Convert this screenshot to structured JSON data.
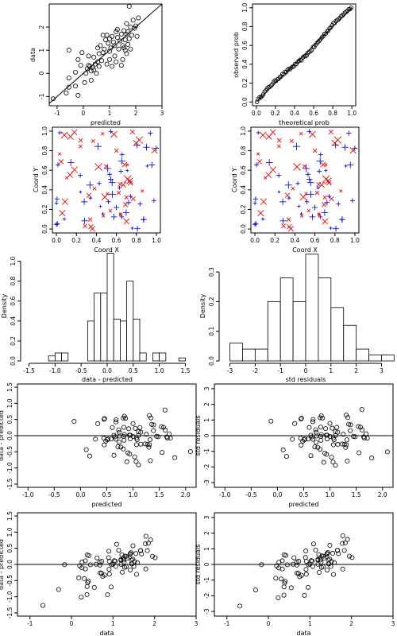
{
  "chart_data": [
    {
      "type": "scatter",
      "xlabel": "predicted",
      "ylabel": "data",
      "xlim": [
        -1.3,
        3.0
      ],
      "ylim": [
        -1.4,
        3.0
      ],
      "xticks": [
        "-1",
        "0",
        "1",
        "2",
        "3"
      ],
      "yticks": [
        "-1",
        "0",
        "1",
        "2"
      ],
      "ref_line": "y = x",
      "points": [
        [
          -1.15,
          -1.1
        ],
        [
          -0.65,
          -0.85
        ],
        [
          -0.55,
          -0.6
        ],
        [
          -0.3,
          -0.55
        ],
        [
          -0.2,
          -0.95
        ],
        [
          -0.55,
          -0.2
        ],
        [
          -0.3,
          0.05
        ],
        [
          -0.2,
          0.6
        ],
        [
          -0.55,
          1.0
        ],
        [
          -0.1,
          0.35
        ],
        [
          0.05,
          -0.4
        ],
        [
          0.1,
          0.0
        ],
        [
          0.15,
          0.2
        ],
        [
          0.2,
          0.35
        ],
        [
          0.25,
          0.3
        ],
        [
          0.3,
          0.1
        ],
        [
          0.35,
          0.25
        ],
        [
          0.4,
          0.15
        ],
        [
          0.45,
          0.4
        ],
        [
          0.5,
          0.0
        ],
        [
          0.55,
          0.5
        ],
        [
          0.6,
          0.3
        ],
        [
          0.6,
          0.85
        ],
        [
          0.65,
          1.2
        ],
        [
          0.7,
          0.55
        ],
        [
          0.75,
          0.9
        ],
        [
          0.8,
          1.05
        ],
        [
          0.85,
          1.45
        ],
        [
          0.9,
          0.4
        ],
        [
          0.95,
          1.3
        ],
        [
          1.0,
          1.5
        ],
        [
          1.0,
          0.95
        ],
        [
          1.05,
          1.1
        ],
        [
          1.1,
          1.6
        ],
        [
          1.15,
          1.35
        ],
        [
          1.2,
          1.2
        ],
        [
          1.2,
          0.75
        ],
        [
          1.25,
          1.8
        ],
        [
          1.3,
          1.55
        ],
        [
          1.35,
          1.05
        ],
        [
          1.4,
          1.4
        ],
        [
          1.45,
          1.7
        ],
        [
          1.5,
          1.2
        ],
        [
          1.55,
          1.1
        ],
        [
          1.55,
          1.85
        ],
        [
          1.6,
          1.45
        ],
        [
          1.65,
          2.15
        ],
        [
          1.65,
          1.7
        ],
        [
          1.7,
          1.25
        ],
        [
          1.7,
          1.8
        ],
        [
          1.75,
          1.5
        ],
        [
          1.8,
          2.0
        ],
        [
          1.85,
          1.65
        ],
        [
          1.9,
          2.3
        ],
        [
          1.95,
          1.95
        ],
        [
          2.0,
          2.05
        ],
        [
          2.05,
          1.6
        ],
        [
          2.1,
          2.4
        ],
        [
          1.75,
          2.9
        ],
        [
          1.5,
          0.6
        ],
        [
          1.6,
          1.0
        ],
        [
          1.1,
          0.3
        ],
        [
          0.9,
          1.65
        ],
        [
          0.75,
          1.65
        ],
        [
          1.3,
          1.9
        ],
        [
          0.4,
          0.7
        ],
        [
          -0.05,
          0.9
        ],
        [
          0.2,
          0.75
        ],
        [
          1.45,
          0.35
        ],
        [
          0.3,
          -0.3
        ],
        [
          1.8,
          1.05
        ],
        [
          1.25,
          0.5
        ],
        [
          0.55,
          1.1
        ],
        [
          1.0,
          0.6
        ],
        [
          1.65,
          0.85
        ]
      ]
    },
    {
      "type": "scatter",
      "xlabel": "theoretical prob",
      "ylabel": "observed prob",
      "xlim": [
        -0.04,
        1.04
      ],
      "ylim": [
        -0.04,
        1.04
      ],
      "xticks": [
        "0.0",
        "0.2",
        "0.4",
        "0.6",
        "0.8",
        "1.0"
      ],
      "yticks": [
        "0.0",
        "0.2",
        "0.4",
        "0.6",
        "0.8",
        "1.0"
      ],
      "ref_line": "y = x",
      "points_rule": "75 points near the diagonal"
    },
    {
      "type": "scatter",
      "xlabel": "Coord X",
      "ylabel": "Coord Y",
      "xlim": [
        -0.04,
        1.04
      ],
      "ylim": [
        -0.04,
        1.04
      ],
      "xticks": [
        "0.0",
        "0.2",
        "0.4",
        "0.6",
        "0.8",
        "1.0"
      ],
      "yticks": [
        "0.0",
        "0.2",
        "0.4",
        "0.6",
        "0.8",
        "1.0"
      ],
      "markers": {
        "positive": "blue +",
        "negative": "red x"
      }
    },
    {
      "type": "scatter",
      "xlabel": "Coord X",
      "ylabel": "Coord Y",
      "xlim": [
        -0.04,
        1.04
      ],
      "ylim": [
        -0.04,
        1.04
      ],
      "xticks": [
        "0.0",
        "0.2",
        "0.4",
        "0.6",
        "0.8",
        "1.0"
      ],
      "yticks": [
        "0.0",
        "0.2",
        "0.4",
        "0.6",
        "0.8",
        "1.0"
      ],
      "markers": {
        "positive": "blue +",
        "negative": "red x"
      }
    },
    {
      "type": "bar",
      "xlabel": "data - predicted",
      "ylabel": "Density",
      "xlim": [
        -1.6,
        1.6
      ],
      "ylim": [
        0,
        1.1
      ],
      "xticks": [
        "-1.5",
        "-1.0",
        "-0.5",
        "0.0",
        "0.5",
        "1.0",
        "1.5"
      ],
      "yticks": [
        "0.0",
        "0.2",
        "0.4",
        "0.6",
        "0.8",
        "1.0"
      ],
      "bin_edges": [
        -1.5,
        -1.375,
        -1.25,
        -1.125,
        -1.0,
        -0.875,
        -0.75,
        -0.625,
        -0.5,
        -0.375,
        -0.25,
        -0.125,
        0.0,
        0.125,
        0.25,
        0.375,
        0.5,
        0.625,
        0.75,
        0.875,
        1.0,
        1.125,
        1.25,
        1.375,
        1.5
      ],
      "values": [
        0.0,
        0.0,
        0.0,
        0.05,
        0.08,
        0.08,
        0.0,
        0.0,
        0.0,
        0.4,
        0.68,
        0.68,
        1.08,
        0.42,
        0.4,
        0.8,
        0.42,
        0.08,
        0.0,
        0.08,
        0.08,
        0.0,
        0.0,
        0.03
      ]
    },
    {
      "type": "bar",
      "xlabel": "std residuals",
      "ylabel": "Density",
      "xlim": [
        -3.3,
        3.3
      ],
      "ylim": [
        0,
        0.37
      ],
      "xticks": [
        "-3",
        "-2",
        "-1",
        "0",
        "1",
        "2",
        "3"
      ],
      "yticks": [
        "0.0",
        "0.1",
        "0.2",
        "0.3"
      ],
      "bin_edges": [
        -3.0,
        -2.5,
        -2.0,
        -1.5,
        -1.0,
        -0.5,
        0.0,
        0.5,
        1.0,
        1.5,
        2.0,
        2.5,
        3.0,
        3.5
      ],
      "values": [
        0.06,
        0.04,
        0.04,
        0.2,
        0.28,
        0.2,
        0.36,
        0.28,
        0.18,
        0.12,
        0.04,
        0.02,
        0.02
      ]
    },
    {
      "type": "scatter",
      "xlabel": "predicted",
      "ylabel": "data - predicted",
      "xlim": [
        -1.2,
        2.2
      ],
      "ylim": [
        -1.6,
        1.6
      ],
      "xticks": [
        "-1.0",
        "-0.5",
        "0.0",
        "0.5",
        "1.0",
        "1.5",
        "2.0"
      ],
      "yticks": [
        "-1.5",
        "-1.0",
        "-0.5",
        "0.0",
        "0.5",
        "1.0",
        "1.5"
      ],
      "ref_line": "y = 0"
    },
    {
      "type": "scatter",
      "xlabel": "predicted",
      "ylabel": "std residuals",
      "xlim": [
        -1.2,
        2.2
      ],
      "ylim": [
        -3.3,
        3.3
      ],
      "xticks": [
        "-1.0",
        "-0.5",
        "0.0",
        "0.5",
        "1.0",
        "1.5",
        "2.0"
      ],
      "yticks": [
        "-3",
        "-2",
        "-1",
        "0",
        "1",
        "2",
        "3"
      ],
      "ref_line": "y = 0"
    },
    {
      "type": "scatter",
      "xlabel": "data",
      "ylabel": "data - predicted",
      "xlim": [
        -1.3,
        3.0
      ],
      "ylim": [
        -1.6,
        1.6
      ],
      "xticks": [
        "-1",
        "0",
        "1",
        "2",
        "3"
      ],
      "yticks": [
        "-1.5",
        "-1.0",
        "-0.5",
        "0.0",
        "0.5",
        "1.0",
        "1.5"
      ],
      "ref_line": "y = 0"
    },
    {
      "type": "scatter",
      "xlabel": "data",
      "ylabel": "std residuals",
      "xlim": [
        -1.3,
        3.0
      ],
      "ylim": [
        -3.3,
        3.3
      ],
      "xticks": [
        "-1",
        "0",
        "1",
        "2",
        "3"
      ],
      "yticks": [
        "-3",
        "-2",
        "-1",
        "0",
        "1",
        "2",
        "3"
      ],
      "ref_line": "y = 0"
    }
  ]
}
